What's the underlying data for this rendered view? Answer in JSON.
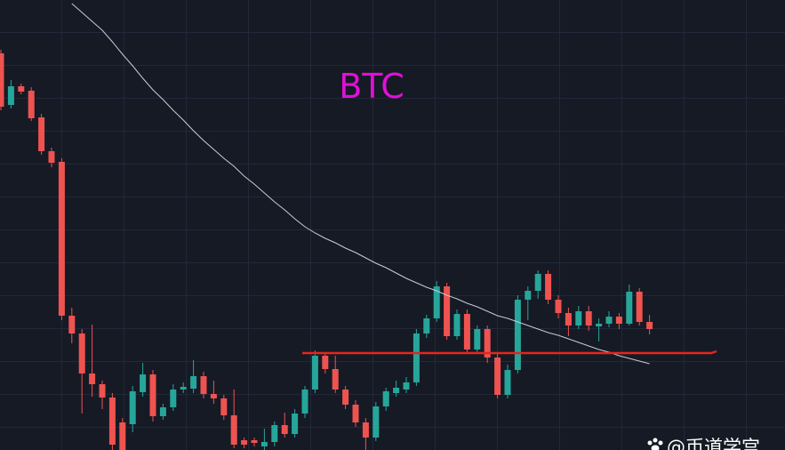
{
  "chart_data": {
    "type": "candlestick",
    "title": "BTC",
    "watermark": "@币道学宫",
    "ylim": [
      0,
      506
    ],
    "up_color": "#26a69a",
    "down_color": "#ef5350",
    "title_color": "#e010d8",
    "open": [
      446,
      388,
      409,
      404,
      374,
      336,
      324,
      151,
      131,
      86,
      74,
      59,
      31,
      29,
      65,
      85,
      38,
      48,
      68,
      69,
      83,
      63,
      58,
      39,
      11,
      11,
      4,
      9,
      28,
      18,
      41,
      68,
      106,
      91,
      68,
      51,
      31,
      14,
      49,
      64,
      68,
      76,
      131,
      148,
      184,
      128,
      153,
      113,
      136,
      104,
      62,
      90,
      169,
      179,
      198,
      169,
      154,
      140,
      156,
      139,
      142,
      150,
      142,
      178,
      144
    ],
    "high": [
      450,
      416,
      412,
      408,
      378,
      340,
      328,
      160,
      136,
      141,
      78,
      64,
      36,
      72,
      98,
      90,
      52,
      74,
      76,
      101,
      88,
      78,
      62,
      68,
      14,
      14,
      24,
      32,
      42,
      46,
      72,
      112,
      110,
      106,
      72,
      56,
      36,
      54,
      70,
      78,
      82,
      136,
      152,
      190,
      188,
      158,
      158,
      140,
      140,
      108,
      96,
      174,
      184,
      202,
      202,
      174,
      160,
      162,
      162,
      148,
      156,
      154,
      186,
      182,
      152
    ],
    "low": [
      382,
      384,
      400,
      370,
      332,
      318,
      146,
      120,
      41,
      60,
      46,
      0,
      0,
      20,
      60,
      32,
      34,
      44,
      64,
      64,
      58,
      52,
      34,
      2,
      2,
      4,
      0,
      4,
      14,
      14,
      36,
      64,
      86,
      64,
      46,
      26,
      0,
      10,
      44,
      60,
      64,
      72,
      126,
      144,
      124,
      124,
      108,
      108,
      98,
      58,
      58,
      86,
      146,
      170,
      164,
      148,
      128,
      136,
      134,
      122,
      138,
      136,
      140,
      140,
      130
    ],
    "close": [
      386,
      409,
      403,
      373,
      336,
      323,
      151,
      131,
      86,
      74,
      59,
      6,
      0,
      66,
      85,
      38,
      48,
      68,
      71,
      83,
      63,
      58,
      39,
      6,
      6,
      8,
      9,
      28,
      18,
      41,
      68,
      106,
      91,
      68,
      51,
      31,
      14,
      49,
      66,
      70,
      76,
      131,
      148,
      184,
      128,
      153,
      113,
      136,
      104,
      62,
      90,
      169,
      179,
      198,
      169,
      154,
      140,
      156,
      140,
      142,
      150,
      142,
      178,
      144,
      136
    ],
    "ma": {
      "color": "#c8cbd4",
      "values": [
        null,
        null,
        null,
        null,
        null,
        null,
        null,
        502,
        492,
        482,
        472,
        459,
        445,
        432,
        418,
        405,
        394,
        382,
        371,
        359,
        348,
        338,
        328,
        319,
        308,
        299,
        289,
        279,
        270,
        260,
        251,
        244,
        238,
        233,
        227,
        222,
        216,
        210,
        205,
        199,
        193,
        188,
        183,
        179,
        174,
        170,
        165,
        161,
        156,
        151,
        148,
        144,
        140,
        136,
        132,
        129,
        125,
        121,
        117,
        113,
        110,
        106,
        103,
        100,
        97
      ]
    },
    "support_line": {
      "value": 109,
      "color": "#e3261f"
    }
  }
}
